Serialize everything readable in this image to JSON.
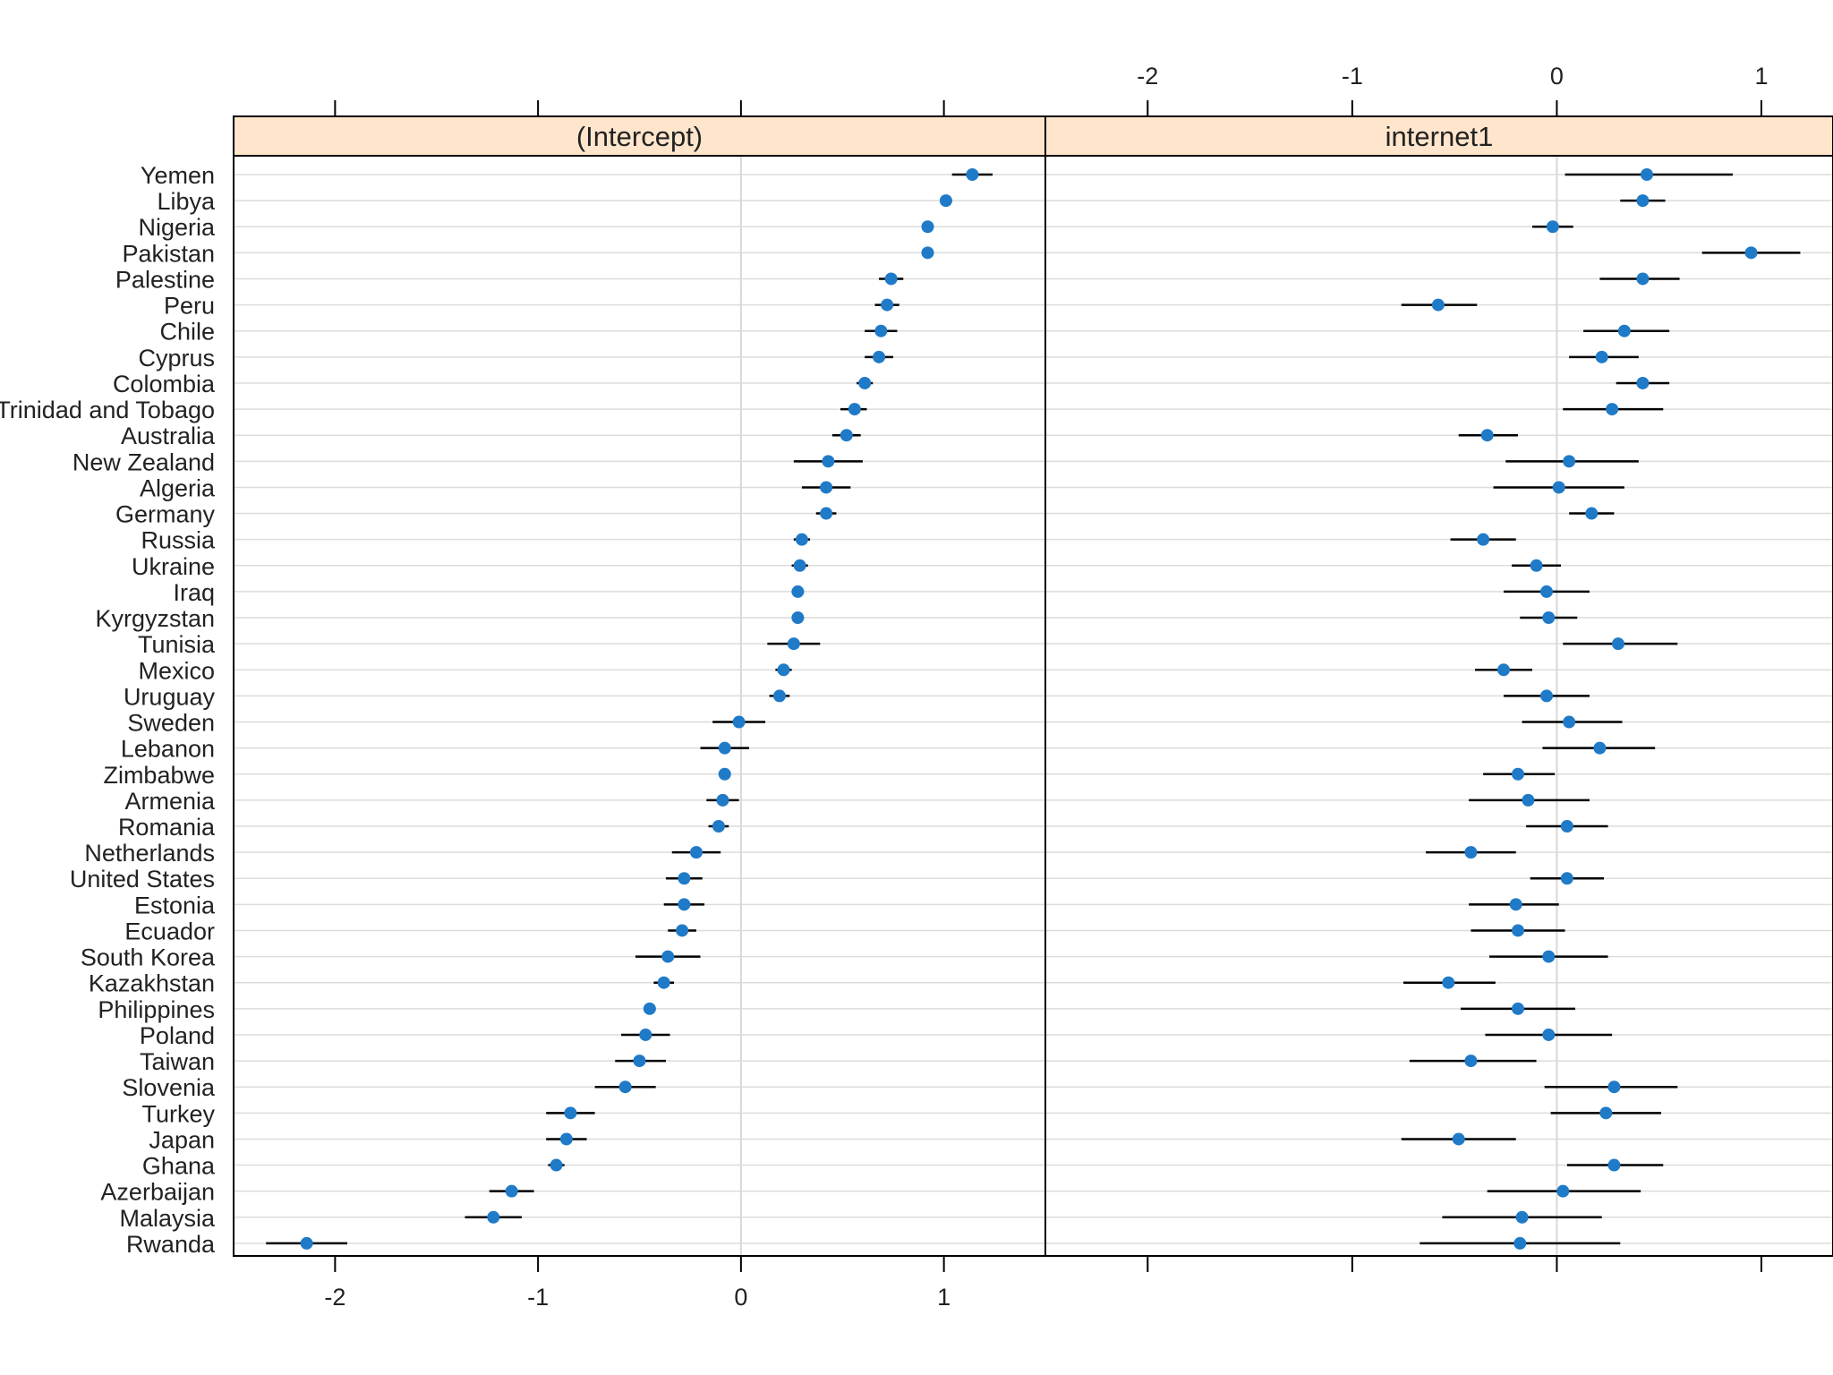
{
  "chart_data": {
    "type": "scatter",
    "subtype": "dotplot-with-error-bars",
    "facets": [
      {
        "title": "(Intercept)",
        "xlim": [
          -2.5,
          1.5
        ],
        "ticks": [
          -2,
          -1,
          0,
          1
        ],
        "tick_labels": [
          "-2",
          "-1",
          "0",
          "1"
        ],
        "tick_label_position": "bottom",
        "vertical_ref_line_at": 0
      },
      {
        "title": "internet1",
        "xlim": [
          -2.5,
          1.35
        ],
        "ticks": [
          -2,
          -1,
          0,
          1
        ],
        "tick_labels": [
          "-2",
          "-1",
          "0",
          "1"
        ],
        "tick_label_position": "top",
        "vertical_ref_line_at": 0
      }
    ],
    "categories": [
      "Yemen",
      "Libya",
      "Nigeria",
      "Pakistan",
      "Palestine",
      "Peru",
      "Chile",
      "Cyprus",
      "Colombia",
      "Trinidad and Tobago",
      "Australia",
      "New Zealand",
      "Algeria",
      "Germany",
      "Russia",
      "Ukraine",
      "Iraq",
      "Kyrgyzstan",
      "Tunisia",
      "Mexico",
      "Uruguay",
      "Sweden",
      "Lebanon",
      "Zimbabwe",
      "Armenia",
      "Romania",
      "Netherlands",
      "United States",
      "Estonia",
      "Ecuador",
      "South Korea",
      "Kazakhstan",
      "Philippines",
      "Poland",
      "Taiwan",
      "Slovenia",
      "Turkey",
      "Japan",
      "Ghana",
      "Azerbaijan",
      "Malaysia",
      "Rwanda"
    ],
    "series": [
      {
        "facet": "(Intercept)",
        "values": [
          1.14,
          1.01,
          0.92,
          0.92,
          0.74,
          0.72,
          0.69,
          0.68,
          0.61,
          0.56,
          0.52,
          0.43,
          0.42,
          0.42,
          0.3,
          0.29,
          0.28,
          0.28,
          0.26,
          0.21,
          0.19,
          -0.01,
          -0.08,
          -0.08,
          -0.09,
          -0.11,
          -0.22,
          -0.28,
          -0.28,
          -0.29,
          -0.36,
          -0.38,
          -0.45,
          -0.47,
          -0.5,
          -0.57,
          -0.84,
          -0.86,
          -0.91,
          -1.13,
          -1.22,
          -2.14
        ],
        "lower": [
          1.04,
          0.98,
          0.9,
          0.9,
          0.68,
          0.66,
          0.61,
          0.61,
          0.57,
          0.49,
          0.45,
          0.26,
          0.3,
          0.37,
          0.26,
          0.25,
          0.25,
          0.25,
          0.13,
          0.17,
          0.14,
          -0.14,
          -0.2,
          -0.11,
          -0.17,
          -0.16,
          -0.34,
          -0.37,
          -0.38,
          -0.36,
          -0.52,
          -0.43,
          -0.48,
          -0.59,
          -0.62,
          -0.72,
          -0.96,
          -0.96,
          -0.95,
          -1.24,
          -1.36,
          -2.34
        ],
        "upper": [
          1.24,
          1.04,
          0.94,
          0.94,
          0.8,
          0.78,
          0.77,
          0.75,
          0.65,
          0.62,
          0.59,
          0.6,
          0.54,
          0.47,
          0.34,
          0.33,
          0.31,
          0.31,
          0.39,
          0.25,
          0.24,
          0.12,
          0.04,
          -0.05,
          -0.01,
          -0.06,
          -0.1,
          -0.19,
          -0.18,
          -0.22,
          -0.2,
          -0.33,
          -0.42,
          -0.35,
          -0.37,
          -0.42,
          -0.72,
          -0.76,
          -0.87,
          -1.02,
          -1.08,
          -1.94
        ]
      },
      {
        "facet": "internet1",
        "values": [
          0.44,
          0.42,
          -0.02,
          0.95,
          0.42,
          -0.58,
          0.33,
          0.22,
          0.42,
          0.27,
          -0.34,
          0.06,
          0.01,
          0.17,
          -0.36,
          -0.1,
          -0.05,
          -0.04,
          0.3,
          -0.26,
          -0.05,
          0.06,
          0.21,
          -0.19,
          -0.14,
          0.05,
          -0.42,
          0.05,
          -0.2,
          -0.19,
          -0.04,
          -0.53,
          -0.19,
          -0.04,
          -0.42,
          0.28,
          0.24,
          -0.48,
          0.28,
          0.03,
          -0.17,
          -0.18
        ],
        "lower": [
          0.04,
          0.31,
          -0.12,
          0.71,
          0.21,
          -0.76,
          0.13,
          0.06,
          0.29,
          0.03,
          -0.48,
          -0.25,
          -0.31,
          0.06,
          -0.52,
          -0.22,
          -0.26,
          -0.18,
          0.03,
          -0.4,
          -0.26,
          -0.17,
          -0.07,
          -0.36,
          -0.43,
          -0.15,
          -0.64,
          -0.13,
          -0.43,
          -0.42,
          -0.33,
          -0.75,
          -0.47,
          -0.35,
          -0.72,
          -0.06,
          -0.03,
          -0.76,
          0.05,
          -0.34,
          -0.56,
          -0.67
        ],
        "upper": [
          0.86,
          0.53,
          0.08,
          1.19,
          0.6,
          -0.39,
          0.55,
          0.4,
          0.55,
          0.52,
          -0.19,
          0.4,
          0.33,
          0.28,
          -0.2,
          0.02,
          0.16,
          0.1,
          0.59,
          -0.12,
          0.16,
          0.32,
          0.48,
          -0.01,
          0.16,
          0.25,
          -0.2,
          0.23,
          0.01,
          0.04,
          0.25,
          -0.3,
          0.09,
          0.27,
          -0.1,
          0.59,
          0.51,
          -0.2,
          0.52,
          0.41,
          0.22,
          0.31
        ]
      }
    ],
    "strip_color": "#ffe5cc",
    "point_color": "#1f7ac8",
    "grid": true,
    "legend": "none"
  }
}
